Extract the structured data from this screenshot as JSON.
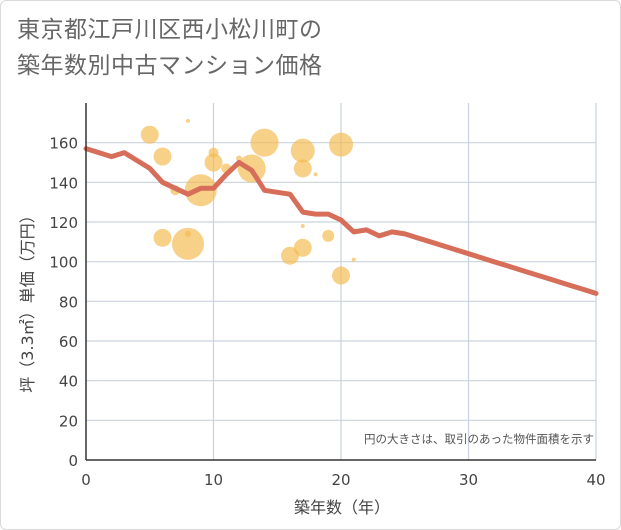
{
  "chart_data": {
    "type": "scatter",
    "title_line1": "東京都江戸川区西小松川町の",
    "title_line2": "築年数別中古マンション価格",
    "xlabel": "築年数（年）",
    "ylabel": "坪（3.3㎡）単価（万円）",
    "xlim": [
      0,
      40
    ],
    "ylim": [
      0,
      180
    ],
    "xticks": [
      0,
      10,
      20,
      30,
      40
    ],
    "yticks": [
      0,
      20,
      40,
      60,
      80,
      100,
      120,
      140,
      160
    ],
    "grid": true,
    "note": "円の大きさは、取引のあった物件面積を示す",
    "colors": {
      "bubble": "#f5b94a",
      "line": "#d66e5a",
      "grid": "#c9d3de"
    },
    "bubbles": [
      {
        "x": 5,
        "y": 164,
        "s": 9
      },
      {
        "x": 6,
        "y": 153,
        "s": 9
      },
      {
        "x": 6,
        "y": 112,
        "s": 9
      },
      {
        "x": 7,
        "y": 136,
        "s": 5
      },
      {
        "x": 8,
        "y": 171,
        "s": 2
      },
      {
        "x": 8,
        "y": 114,
        "s": 3
      },
      {
        "x": 8,
        "y": 109,
        "s": 16
      },
      {
        "x": 9,
        "y": 136,
        "s": 16
      },
      {
        "x": 10,
        "y": 155,
        "s": 5
      },
      {
        "x": 10,
        "y": 150,
        "s": 9
      },
      {
        "x": 11,
        "y": 147,
        "s": 5
      },
      {
        "x": 12,
        "y": 152,
        "s": 3
      },
      {
        "x": 13,
        "y": 147,
        "s": 14
      },
      {
        "x": 14,
        "y": 160,
        "s": 14
      },
      {
        "x": 16,
        "y": 103,
        "s": 9
      },
      {
        "x": 17,
        "y": 156,
        "s": 12
      },
      {
        "x": 17,
        "y": 147,
        "s": 9
      },
      {
        "x": 17,
        "y": 118,
        "s": 2
      },
      {
        "x": 17,
        "y": 107,
        "s": 9
      },
      {
        "x": 18,
        "y": 144,
        "s": 2
      },
      {
        "x": 19,
        "y": 113,
        "s": 6
      },
      {
        "x": 20,
        "y": 159,
        "s": 12
      },
      {
        "x": 20,
        "y": 93,
        "s": 9
      },
      {
        "x": 21,
        "y": 101,
        "s": 2
      }
    ],
    "line": {
      "x": [
        0,
        1,
        2,
        3,
        4,
        5,
        6,
        7,
        8,
        9,
        10,
        11,
        12,
        13,
        14,
        15,
        16,
        17,
        18,
        19,
        20,
        21,
        22,
        23,
        24,
        25,
        26,
        27,
        28,
        29,
        30,
        31,
        32,
        33,
        34,
        35,
        36,
        37,
        38,
        39,
        40
      ],
      "y": [
        157,
        155,
        153,
        155,
        151,
        147,
        140,
        137,
        134,
        137,
        137,
        144,
        150,
        146,
        136,
        135,
        134,
        125,
        124,
        124,
        121,
        115,
        116,
        113,
        115,
        114,
        112,
        110,
        108,
        106,
        104,
        102,
        100,
        98,
        96,
        94,
        92,
        90,
        88,
        86,
        84
      ]
    }
  }
}
